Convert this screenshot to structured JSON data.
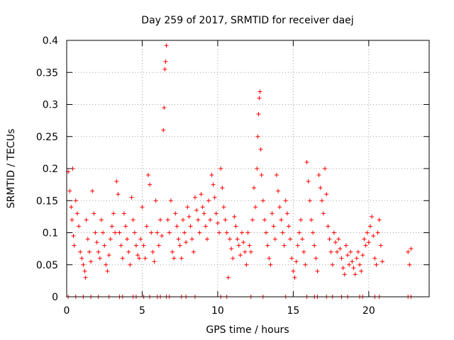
{
  "chart_data": {
    "type": "scatter",
    "title": "Day 259 of 2017, SRMTID for receiver daej",
    "xlabel": "GPS time / hours",
    "ylabel": "SRMTID / TECUs",
    "xlim": [
      0,
      24
    ],
    "ylim": [
      0,
      0.4
    ],
    "x_ticks": [
      0,
      5,
      10,
      15,
      20
    ],
    "x_tick_labels": [
      "0",
      "5",
      "10",
      "15",
      "20"
    ],
    "y_ticks": [
      0,
      0.05,
      0.1,
      0.15,
      0.2,
      0.25,
      0.3,
      0.35,
      0.4
    ],
    "y_tick_labels": [
      "0",
      "0.05",
      "0.1",
      "0.15",
      "0.2",
      "0.25",
      "0.3",
      "0.35",
      "0.4"
    ],
    "grid": true,
    "marker": "+",
    "color": "#ff0000",
    "series": [
      {
        "name": "SRMTID",
        "points": [
          [
            0.1,
            0.195
          ],
          [
            0.2,
            0.165
          ],
          [
            0.3,
            0.14
          ],
          [
            0.35,
            0.12
          ],
          [
            0.4,
            0.2
          ],
          [
            0.45,
            0.095
          ],
          [
            0.5,
            0.08
          ],
          [
            0.6,
            0.15
          ],
          [
            0.7,
            0.13
          ],
          [
            0.8,
            0.11
          ],
          [
            0.9,
            0.07
          ],
          [
            1.0,
            0.06
          ],
          [
            1.1,
            0.05
          ],
          [
            1.2,
            0.04
          ],
          [
            1.25,
            0.03
          ],
          [
            1.3,
            0.12
          ],
          [
            1.4,
            0.09
          ],
          [
            1.5,
            0.07
          ],
          [
            1.6,
            0.055
          ],
          [
            1.7,
            0.165
          ],
          [
            1.8,
            0.13
          ],
          [
            1.9,
            0.1
          ],
          [
            2.0,
            0.085
          ],
          [
            2.1,
            0.07
          ],
          [
            2.2,
            0.06
          ],
          [
            2.3,
            0.12
          ],
          [
            2.4,
            0.1
          ],
          [
            2.5,
            0.08
          ],
          [
            2.6,
            0.05
          ],
          [
            2.7,
            0.04
          ],
          [
            2.8,
            0.065
          ],
          [
            2.9,
            0.09
          ],
          [
            3.0,
            0.11
          ],
          [
            3.1,
            0.13
          ],
          [
            3.2,
            0.1
          ],
          [
            3.3,
            0.18
          ],
          [
            3.4,
            0.16
          ],
          [
            3.5,
            0.1
          ],
          [
            3.6,
            0.08
          ],
          [
            3.7,
            0.06
          ],
          [
            3.8,
            0.13
          ],
          [
            3.9,
            0.11
          ],
          [
            4.0,
            0.09
          ],
          [
            4.1,
            0.07
          ],
          [
            4.2,
            0.05
          ],
          [
            4.3,
            0.155
          ],
          [
            4.4,
            0.12
          ],
          [
            4.5,
            0.1
          ],
          [
            4.6,
            0.08
          ],
          [
            4.7,
            0.065
          ],
          [
            4.8,
            0.06
          ],
          [
            4.9,
            0.09
          ],
          [
            5.0,
            0.14
          ],
          [
            5.1,
            0.08
          ],
          [
            5.2,
            0.06
          ],
          [
            5.3,
            0.11
          ],
          [
            5.4,
            0.19
          ],
          [
            5.5,
            0.175
          ],
          [
            5.6,
            0.1
          ],
          [
            5.7,
            0.07
          ],
          [
            5.8,
            0.055
          ],
          [
            5.9,
            0.15
          ],
          [
            6.0,
            0.1
          ],
          [
            6.1,
            0.08
          ],
          [
            6.2,
            0.12
          ],
          [
            6.3,
            0.095
          ],
          [
            6.4,
            0.26
          ],
          [
            6.45,
            0.295
          ],
          [
            6.5,
            0.355
          ],
          [
            6.55,
            0.367
          ],
          [
            6.6,
            0.392
          ],
          [
            6.7,
            0.12
          ],
          [
            6.8,
            0.1
          ],
          [
            6.9,
            0.15
          ],
          [
            7.0,
            0.07
          ],
          [
            7.1,
            0.06
          ],
          [
            7.2,
            0.13
          ],
          [
            7.3,
            0.11
          ],
          [
            7.4,
            0.09
          ],
          [
            7.5,
            0.08
          ],
          [
            7.6,
            0.06
          ],
          [
            7.7,
            0.12
          ],
          [
            7.8,
            0.1
          ],
          [
            7.9,
            0.085
          ],
          [
            8.0,
            0.14
          ],
          [
            8.1,
            0.125
          ],
          [
            8.2,
            0.11
          ],
          [
            8.3,
            0.09
          ],
          [
            8.4,
            0.07
          ],
          [
            8.5,
            0.155
          ],
          [
            8.6,
            0.135
          ],
          [
            8.7,
            0.12
          ],
          [
            8.8,
            0.1
          ],
          [
            8.9,
            0.16
          ],
          [
            9.0,
            0.14
          ],
          [
            9.1,
            0.13
          ],
          [
            9.2,
            0.11
          ],
          [
            9.3,
            0.09
          ],
          [
            9.4,
            0.15
          ],
          [
            9.5,
            0.12
          ],
          [
            9.6,
            0.19
          ],
          [
            9.7,
            0.175
          ],
          [
            9.8,
            0.155
          ],
          [
            9.9,
            0.13
          ],
          [
            10.0,
            0.115
          ],
          [
            10.1,
            0.1
          ],
          [
            10.2,
            0.2
          ],
          [
            10.3,
            0.17
          ],
          [
            10.4,
            0.14
          ],
          [
            10.5,
            0.12
          ],
          [
            10.6,
            0.1
          ],
          [
            10.7,
            0.03
          ],
          [
            10.8,
            0.09
          ],
          [
            10.9,
            0.075
          ],
          [
            11.0,
            0.06
          ],
          [
            11.1,
            0.125
          ],
          [
            11.2,
            0.11
          ],
          [
            11.3,
            0.09
          ],
          [
            11.4,
            0.08
          ],
          [
            11.5,
            0.065
          ],
          [
            11.6,
            0.1
          ],
          [
            11.7,
            0.085
          ],
          [
            11.8,
            0.07
          ],
          [
            11.9,
            0.05
          ],
          [
            12.0,
            0.1
          ],
          [
            12.1,
            0.08
          ],
          [
            12.2,
            0.07
          ],
          [
            12.3,
            0.12
          ],
          [
            12.4,
            0.17
          ],
          [
            12.5,
            0.14
          ],
          [
            12.6,
            0.2
          ],
          [
            12.65,
            0.25
          ],
          [
            12.7,
            0.285
          ],
          [
            12.75,
            0.31
          ],
          [
            12.8,
            0.32
          ],
          [
            12.85,
            0.23
          ],
          [
            12.9,
            0.19
          ],
          [
            13.0,
            0.15
          ],
          [
            13.1,
            0.12
          ],
          [
            13.2,
            0.1
          ],
          [
            13.3,
            0.08
          ],
          [
            13.4,
            0.06
          ],
          [
            13.5,
            0.05
          ],
          [
            13.6,
            0.13
          ],
          [
            13.7,
            0.11
          ],
          [
            13.8,
            0.09
          ],
          [
            13.9,
            0.19
          ],
          [
            14.0,
            0.165
          ],
          [
            14.1,
            0.14
          ],
          [
            14.2,
            0.12
          ],
          [
            14.3,
            0.1
          ],
          [
            14.4,
            0.08
          ],
          [
            14.5,
            0.15
          ],
          [
            14.6,
            0.13
          ],
          [
            14.7,
            0.11
          ],
          [
            14.8,
            0.09
          ],
          [
            14.9,
            0.06
          ],
          [
            15.0,
            0.04
          ],
          [
            15.1,
            0.03
          ],
          [
            15.2,
            0.055
          ],
          [
            15.3,
            0.08
          ],
          [
            15.4,
            0.1
          ],
          [
            15.5,
            0.12
          ],
          [
            15.6,
            0.09
          ],
          [
            15.7,
            0.07
          ],
          [
            15.8,
            0.05
          ],
          [
            15.9,
            0.21
          ],
          [
            16.0,
            0.18
          ],
          [
            16.1,
            0.15
          ],
          [
            16.2,
            0.12
          ],
          [
            16.3,
            0.1
          ],
          [
            16.4,
            0.08
          ],
          [
            16.5,
            0.06
          ],
          [
            16.6,
            0.04
          ],
          [
            16.7,
            0.19
          ],
          [
            16.8,
            0.17
          ],
          [
            16.9,
            0.15
          ],
          [
            17.0,
            0.13
          ],
          [
            17.1,
            0.2
          ],
          [
            17.2,
            0.16
          ],
          [
            17.3,
            0.11
          ],
          [
            17.4,
            0.09
          ],
          [
            17.5,
            0.07
          ],
          [
            17.6,
            0.05
          ],
          [
            17.7,
            0.1
          ],
          [
            17.8,
            0.085
          ],
          [
            17.9,
            0.07
          ],
          [
            18.0,
            0.09
          ],
          [
            18.1,
            0.075
          ],
          [
            18.2,
            0.06
          ],
          [
            18.3,
            0.045
          ],
          [
            18.4,
            0.035
          ],
          [
            18.5,
            0.08
          ],
          [
            18.6,
            0.065
          ],
          [
            18.7,
            0.05
          ],
          [
            18.8,
            0.07
          ],
          [
            18.9,
            0.055
          ],
          [
            19.0,
            0.045
          ],
          [
            19.1,
            0.035
          ],
          [
            19.2,
            0.06
          ],
          [
            19.3,
            0.07
          ],
          [
            19.4,
            0.05
          ],
          [
            19.5,
            0.04
          ],
          [
            19.6,
            0.065
          ],
          [
            19.7,
            0.09
          ],
          [
            19.8,
            0.08
          ],
          [
            19.9,
            0.1
          ],
          [
            20.0,
            0.085
          ],
          [
            20.1,
            0.11
          ],
          [
            20.2,
            0.125
          ],
          [
            20.3,
            0.095
          ],
          [
            20.4,
            0.06
          ],
          [
            20.5,
            0.05
          ],
          [
            20.6,
            0.1
          ],
          [
            20.7,
            0.12
          ],
          [
            20.8,
            0.08
          ],
          [
            20.9,
            0.055
          ],
          [
            22.6,
            0.07
          ],
          [
            22.7,
            0.05
          ],
          [
            22.8,
            0.075
          ]
        ]
      }
    ]
  }
}
